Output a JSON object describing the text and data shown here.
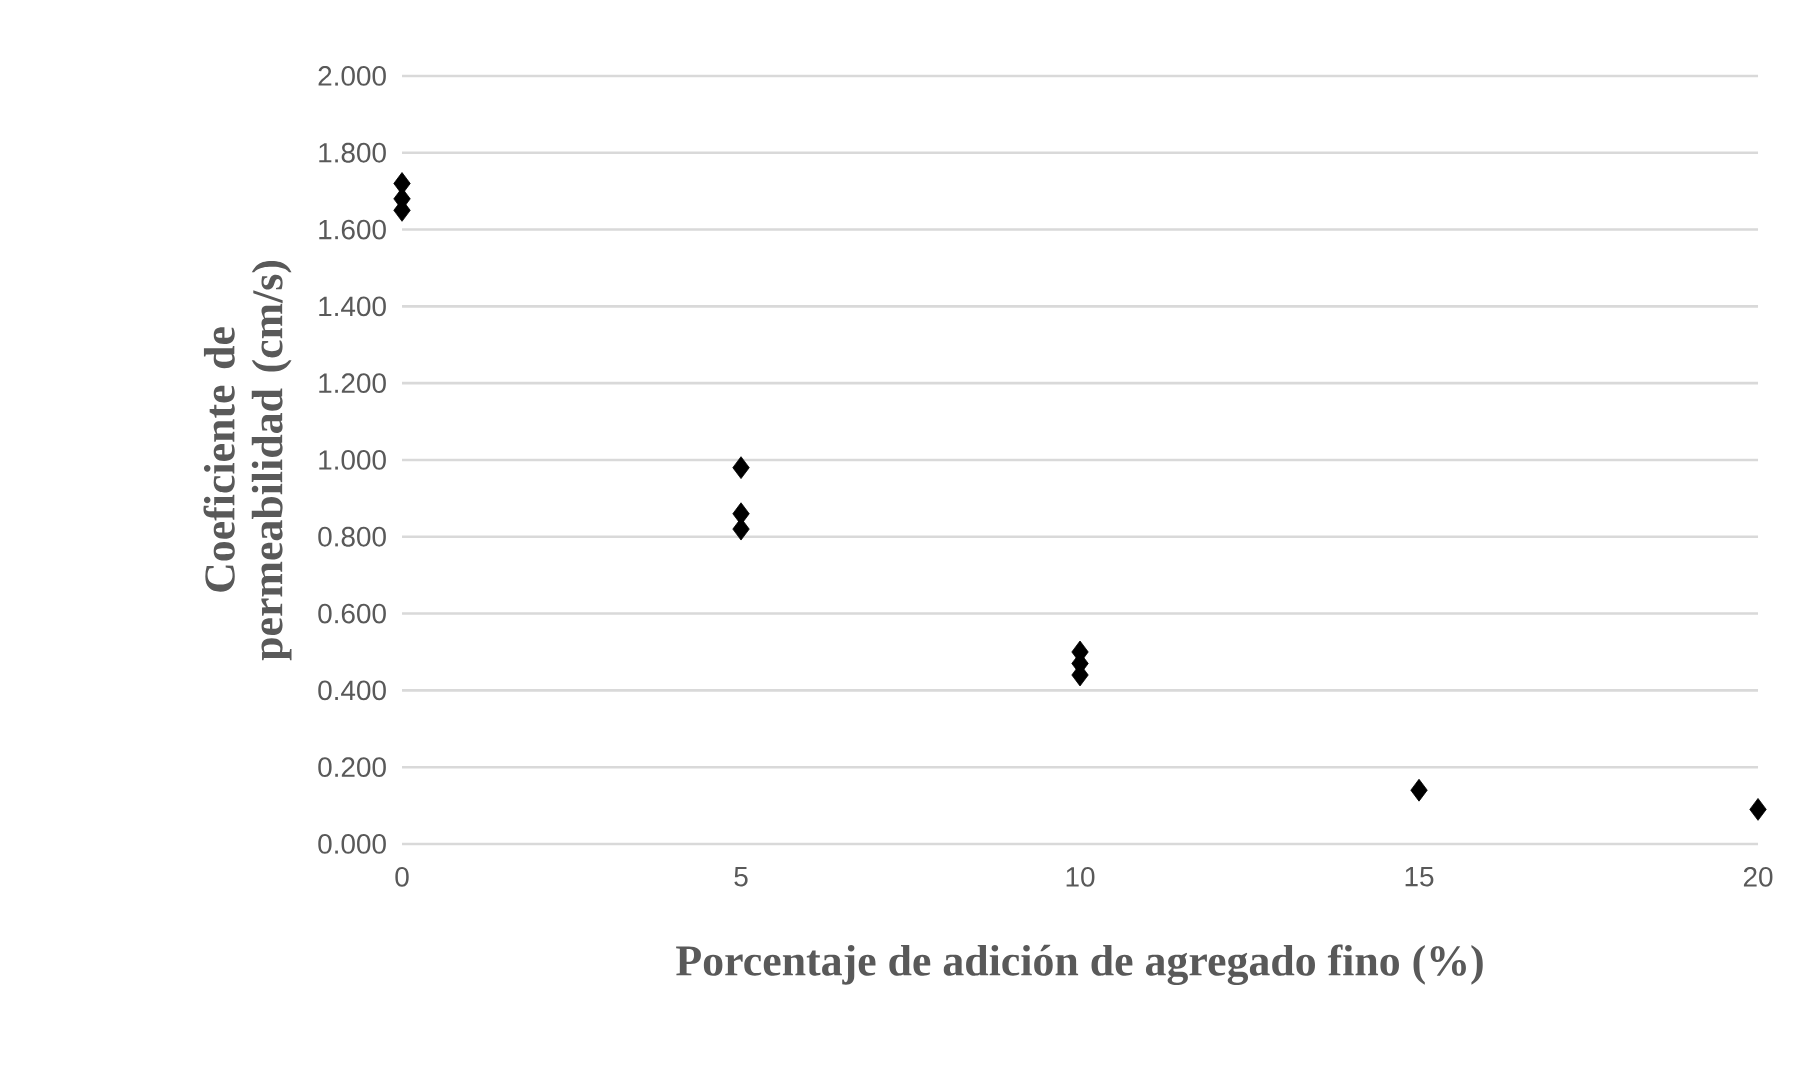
{
  "chart_data": {
    "type": "scatter",
    "xlabel": "Porcentaje de adición de agregado fino (%)",
    "ylabel": "Coeficiente de permeabilidad (cm/s)",
    "x": [
      0,
      0,
      0,
      5,
      5,
      5,
      10,
      10,
      10,
      15,
      20
    ],
    "series": [
      {
        "color": "#000000",
        "values": [
          1.72,
          1.68,
          1.65,
          0.98,
          0.86,
          0.82,
          0.5,
          0.47,
          0.44,
          0.14,
          0.09
        ]
      }
    ],
    "xlim": [
      0,
      20
    ],
    "xticks": [
      0,
      5,
      10,
      15,
      20
    ],
    "ylim": [
      0,
      2
    ],
    "yticks": [
      {
        "value": 0,
        "label": "0.000"
      },
      {
        "value": 0.2,
        "label": "0.200"
      },
      {
        "value": 0.4,
        "label": "0.400"
      },
      {
        "value": 0.6,
        "label": "0.600"
      },
      {
        "value": 0.8,
        "label": "0.800"
      },
      {
        "value": 1.0,
        "label": "1.000"
      },
      {
        "value": 1.2,
        "label": "1.200"
      },
      {
        "value": 1.4,
        "label": "1.400"
      },
      {
        "value": 1.6,
        "label": "1.600"
      },
      {
        "value": 1.8,
        "label": "1.800"
      },
      {
        "value": 2.0,
        "label": "2.000"
      }
    ],
    "grid": "y",
    "marker": "diamond"
  }
}
